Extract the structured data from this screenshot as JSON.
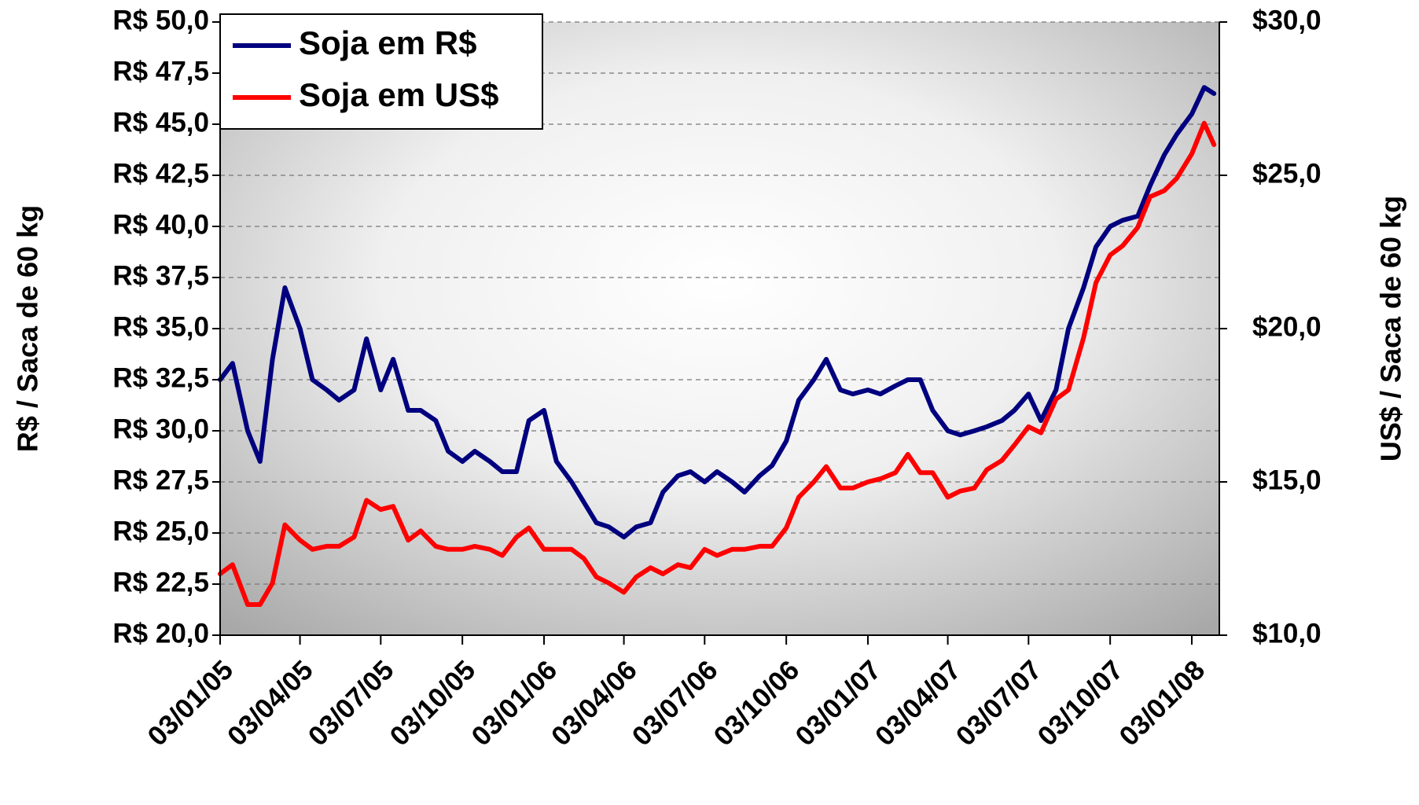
{
  "chart_data": {
    "type": "line",
    "y_axis_label": "R$ / Saca de 60 kg",
    "y2_axis_label": "US$ / Saca de 60 kg",
    "x": [
      "03/01/05",
      "17/01/05",
      "03/02/05",
      "17/02/05",
      "03/03/05",
      "17/03/05",
      "03/04/05",
      "17/04/05",
      "03/05/05",
      "17/05/05",
      "03/06/05",
      "17/06/05",
      "03/07/05",
      "17/07/05",
      "03/08/05",
      "17/08/05",
      "03/09/05",
      "17/09/05",
      "03/10/05",
      "17/10/05",
      "03/11/05",
      "17/11/05",
      "03/12/05",
      "17/12/05",
      "03/01/06",
      "17/01/06",
      "03/02/06",
      "17/02/06",
      "03/03/06",
      "17/03/06",
      "03/04/06",
      "17/04/06",
      "03/05/06",
      "17/05/06",
      "03/06/06",
      "17/06/06",
      "03/07/06",
      "17/07/06",
      "03/08/06",
      "17/08/06",
      "03/09/06",
      "17/09/06",
      "03/10/06",
      "17/10/06",
      "03/11/06",
      "17/11/06",
      "03/12/06",
      "17/12/06",
      "03/01/07",
      "17/01/07",
      "03/02/07",
      "17/02/07",
      "03/03/07",
      "17/03/07",
      "03/04/07",
      "17/04/07",
      "03/05/07",
      "17/05/07",
      "03/06/07",
      "17/06/07",
      "03/07/07",
      "17/07/07",
      "03/08/07",
      "17/08/07",
      "03/09/07",
      "17/09/07",
      "03/10/07",
      "17/10/07",
      "03/11/07",
      "17/11/07",
      "03/12/07",
      "17/12/07",
      "03/01/08",
      "17/01/08",
      "28/01/08"
    ],
    "series": [
      {
        "name": "Soja em R$",
        "color": "#00007f",
        "values": [
          32.5,
          33.3,
          30,
          28.5,
          33.5,
          37,
          35,
          32.5,
          32,
          31.5,
          32,
          34.5,
          32,
          33.5,
          31,
          31,
          30.5,
          29,
          28.5,
          29,
          28.5,
          28,
          28,
          30.5,
          31,
          28.5,
          27.5,
          26.5,
          25.5,
          25.3,
          24.8,
          25.3,
          25.5,
          27,
          27.8,
          28,
          27.5,
          28,
          27.5,
          27,
          27.8,
          28.3,
          29.5,
          31.5,
          32.5,
          33.5,
          32,
          31.8,
          32,
          31.8,
          32.2,
          32.5,
          32.5,
          31,
          30,
          29.8,
          30,
          30.2,
          30.5,
          31,
          31.8,
          30.5,
          32,
          35,
          37,
          39,
          40,
          40.3,
          40.5,
          42,
          43.5,
          44.5,
          45.5,
          46.8,
          46.5
        ]
      },
      {
        "name": "Soja em US$",
        "color": "#ff0000",
        "axis": "y2",
        "values": [
          12,
          12.3,
          11,
          11,
          11.7,
          13.6,
          13.1,
          12.8,
          12.9,
          12.9,
          13.2,
          14.4,
          14.1,
          14.2,
          13.1,
          13.4,
          12.9,
          12.8,
          12.8,
          12.9,
          12.8,
          12.6,
          13.2,
          13.5,
          12.8,
          12.8,
          12.8,
          12.5,
          11.9,
          11.7,
          11.4,
          11.9,
          12.2,
          12,
          12.3,
          12.2,
          12.8,
          12.6,
          12.8,
          12.8,
          12.9,
          12.9,
          13.5,
          14.5,
          15,
          15.5,
          14.8,
          14.8,
          15,
          15.1,
          15.3,
          15.9,
          15.3,
          15.3,
          14.5,
          14.7,
          14.8,
          15.4,
          15.7,
          16.2,
          16.8,
          16.6,
          17.7,
          18,
          19.7,
          21.5,
          22.4,
          22.7,
          23.3,
          24.3,
          24.5,
          24.9,
          25.7,
          26.7,
          26
        ]
      }
    ],
    "xlim": [
      "03/01/05",
      "03/02/08"
    ],
    "xticks": [
      "03/01/05",
      "03/04/05",
      "03/07/05",
      "03/10/05",
      "03/01/06",
      "03/04/06",
      "03/07/06",
      "03/10/06",
      "03/01/07",
      "03/04/07",
      "03/07/07",
      "03/10/07",
      "03/01/08"
    ],
    "ylim": [
      20,
      50
    ],
    "yticks": [
      {
        "value": 20,
        "label": "R$ 20,0"
      },
      {
        "value": 22.5,
        "label": "R$ 22,5"
      },
      {
        "value": 25,
        "label": "R$ 25,0"
      },
      {
        "value": 27.5,
        "label": "R$ 27,5"
      },
      {
        "value": 30,
        "label": "R$ 30,0"
      },
      {
        "value": 32.5,
        "label": "R$ 32,5"
      },
      {
        "value": 35,
        "label": "R$ 35,0"
      },
      {
        "value": 37.5,
        "label": "R$ 37,5"
      },
      {
        "value": 40,
        "label": "R$ 40,0"
      },
      {
        "value": 42.5,
        "label": "R$ 42,5"
      },
      {
        "value": 45,
        "label": "R$ 45,0"
      },
      {
        "value": 47.5,
        "label": "R$ 47,5"
      },
      {
        "value": 50,
        "label": "R$ 50,0"
      }
    ],
    "y2lim": [
      10,
      30
    ],
    "y2ticks": [
      {
        "value": 10,
        "label": "$10,0"
      },
      {
        "value": 15,
        "label": "$15,0"
      },
      {
        "value": 20,
        "label": "$20,0"
      },
      {
        "value": 25,
        "label": "$25,0"
      },
      {
        "value": 30,
        "label": "$30,0"
      }
    ],
    "grid": true,
    "legend": "upper left"
  }
}
